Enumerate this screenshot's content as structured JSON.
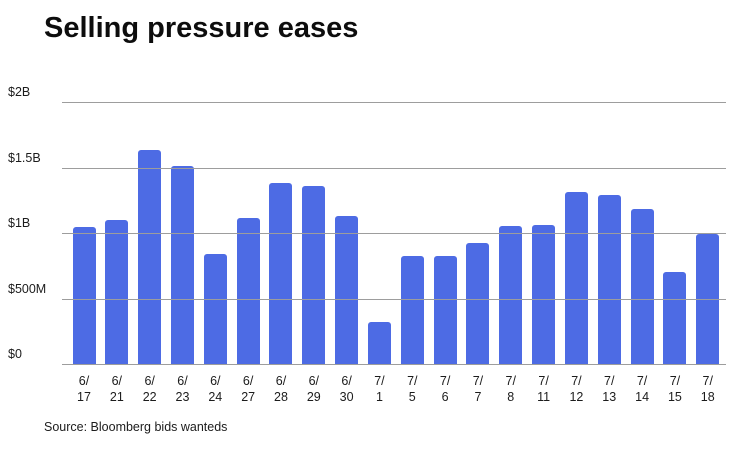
{
  "chart_data": {
    "type": "bar",
    "title": "Selling pressure eases",
    "source": "Source: Bloomberg bids wanteds",
    "categories": [
      "6/17",
      "6/21",
      "6/22",
      "6/23",
      "6/24",
      "6/27",
      "6/28",
      "6/29",
      "6/30",
      "7/1",
      "7/5",
      "7/6",
      "7/7",
      "7/8",
      "7/11",
      "7/12",
      "7/13",
      "7/14",
      "7/15",
      "7/18"
    ],
    "values_millions": [
      1050,
      1110,
      1640,
      1520,
      850,
      1120,
      1390,
      1370,
      1140,
      330,
      830,
      830,
      930,
      1060,
      1070,
      1320,
      1300,
      1190,
      710,
      1000
    ],
    "xlabel": "",
    "ylabel": "",
    "ylim": [
      0,
      2000
    ],
    "yticks": [
      {
        "label": "$2B",
        "value": 2000
      },
      {
        "label": "$1.5B",
        "value": 1500
      },
      {
        "label": "$1B",
        "value": 1000
      },
      {
        "label": "$500M",
        "value": 500
      },
      {
        "label": "$0",
        "value": 0
      }
    ],
    "grid": "horizontal",
    "legend": "none",
    "bar_color": "#4d6be4",
    "gridline_color": "#9d9d9d"
  }
}
